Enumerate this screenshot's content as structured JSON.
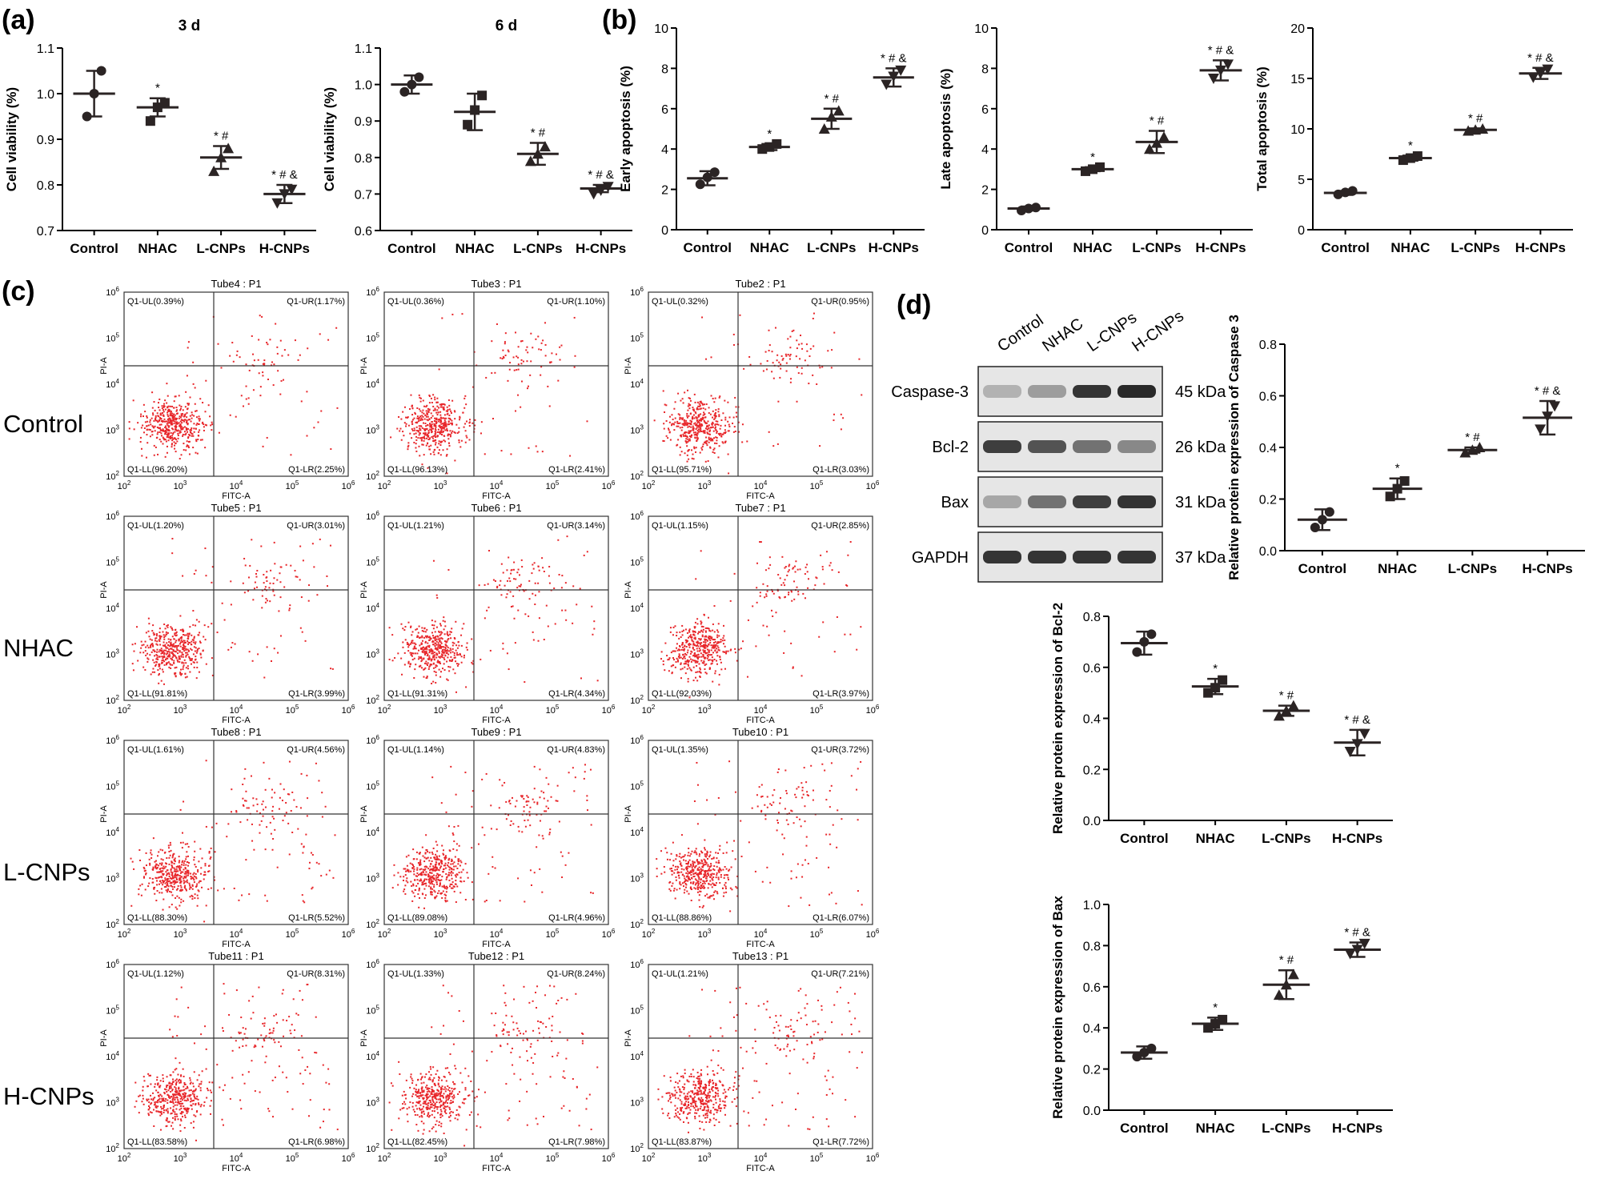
{
  "panel_labels": {
    "a": "(a)",
    "b": "(b)",
    "c": "(c)",
    "d": "(d)"
  },
  "significance_marks": {
    "star": "*",
    "hash": "#",
    "amp": "&"
  },
  "flow_axis": {
    "x_label": "FITC-A",
    "y_label": "PI-A",
    "tick_base": "10",
    "exponents": [
      "2",
      "3",
      "4",
      "5",
      "6"
    ]
  },
  "flow_rows": [
    "Control",
    "NHAC",
    "L-CNPs",
    "H-CNPs"
  ],
  "flow_plots": [
    [
      {
        "title": "Tube4 : P1",
        "UL": "Q1-UL(0.39%)",
        "UR": "Q1-UR(1.17%)",
        "LL": "Q1-LL(96.20%)",
        "LR": "Q1-LR(2.25%)"
      },
      {
        "title": "Tube3 : P1",
        "UL": "Q1-UL(0.36%)",
        "UR": "Q1-UR(1.10%)",
        "LL": "Q1-LL(96.13%)",
        "LR": "Q1-LR(2.41%)"
      },
      {
        "title": "Tube2 : P1",
        "UL": "Q1-UL(0.32%)",
        "UR": "Q1-UR(0.95%)",
        "LL": "Q1-LL(95.71%)",
        "LR": "Q1-LR(3.03%)"
      }
    ],
    [
      {
        "title": "Tube5 : P1",
        "UL": "Q1-UL(1.20%)",
        "UR": "Q1-UR(3.01%)",
        "LL": "Q1-LL(91.81%)",
        "LR": "Q1-LR(3.99%)"
      },
      {
        "title": "Tube6 : P1",
        "UL": "Q1-UL(1.21%)",
        "UR": "Q1-UR(3.14%)",
        "LL": "Q1-LL(91.31%)",
        "LR": "Q1-LR(4.34%)"
      },
      {
        "title": "Tube7 : P1",
        "UL": "Q1-UL(1.15%)",
        "UR": "Q1-UR(2.85%)",
        "LL": "Q1-LL(92.03%)",
        "LR": "Q1-LR(3.97%)"
      }
    ],
    [
      {
        "title": "Tube8 : P1",
        "UL": "Q1-UL(1.61%)",
        "UR": "Q1-UR(4.56%)",
        "LL": "Q1-LL(88.30%)",
        "LR": "Q1-LR(5.52%)"
      },
      {
        "title": "Tube9 : P1",
        "UL": "Q1-UL(1.14%)",
        "UR": "Q1-UR(4.83%)",
        "LL": "Q1-LL(89.08%)",
        "LR": "Q1-LR(4.96%)"
      },
      {
        "title": "Tube10 : P1",
        "UL": "Q1-UL(1.35%)",
        "UR": "Q1-UR(3.72%)",
        "LL": "Q1-LL(88.86%)",
        "LR": "Q1-LR(6.07%)"
      }
    ],
    [
      {
        "title": "Tube11 : P1",
        "UL": "Q1-UL(1.12%)",
        "UR": "Q1-UR(8.31%)",
        "LL": "Q1-LL(83.58%)",
        "LR": "Q1-LR(6.98%)"
      },
      {
        "title": "Tube12 : P1",
        "UL": "Q1-UL(1.33%)",
        "UR": "Q1-UR(8.24%)",
        "LL": "Q1-LL(82.45%)",
        "LR": "Q1-LR(7.98%)"
      },
      {
        "title": "Tube13 : P1",
        "UL": "Q1-UL(1.21%)",
        "UR": "Q1-UR(7.21%)",
        "LL": "Q1-LL(83.87%)",
        "LR": "Q1-LR(7.72%)"
      }
    ]
  ],
  "western_blot": {
    "lanes": [
      "Control",
      "NHAC",
      "L-CNPs",
      "H-CNPs"
    ],
    "rows": [
      {
        "protein": "Caspase-3",
        "size": "45 kDa",
        "intensity": [
          0.25,
          0.35,
          0.85,
          0.9
        ]
      },
      {
        "protein": "Bcl-2",
        "size": "26 kDa",
        "intensity": [
          0.8,
          0.7,
          0.55,
          0.45
        ]
      },
      {
        "protein": "Bax",
        "size": "31 kDa",
        "intensity": [
          0.3,
          0.55,
          0.8,
          0.85
        ]
      },
      {
        "protein": "GAPDH",
        "size": "37 kDa",
        "intensity": [
          0.85,
          0.85,
          0.85,
          0.85
        ]
      }
    ]
  },
  "chart_data": [
    {
      "type": "scatter",
      "title": "3 d",
      "ylabel": "Cell viability (%)",
      "categories": [
        "Control",
        "NHAC",
        "L-CNPs",
        "H-CNPs"
      ],
      "ylim": [
        0.7,
        1.1
      ],
      "yticks": [
        0.7,
        0.8,
        0.9,
        1.0,
        1.1
      ],
      "tick_decimals": 1,
      "points": [
        [
          0.95,
          1.0,
          1.05
        ],
        [
          0.94,
          0.97,
          0.98
        ],
        [
          0.83,
          0.86,
          0.88
        ],
        [
          0.76,
          0.78,
          0.79
        ]
      ],
      "mean": [
        1.0,
        0.97,
        0.86,
        0.78
      ],
      "sd": [
        0.05,
        0.02,
        0.025,
        0.02
      ],
      "marks": [
        "",
        "*",
        "*#",
        "*#&"
      ]
    },
    {
      "type": "scatter",
      "title": "6 d",
      "ylabel": "Cell viability (%)",
      "categories": [
        "Control",
        "NHAC",
        "L-CNPs",
        "H-CNPs"
      ],
      "ylim": [
        0.6,
        1.1
      ],
      "yticks": [
        0.6,
        0.7,
        0.8,
        0.9,
        1.0,
        1.1
      ],
      "tick_decimals": 1,
      "points": [
        [
          0.98,
          1.0,
          1.02
        ],
        [
          0.89,
          0.93,
          0.97
        ],
        [
          0.79,
          0.81,
          0.83
        ],
        [
          0.7,
          0.71,
          0.72
        ]
      ],
      "mean": [
        1.0,
        0.925,
        0.81,
        0.715
      ],
      "sd": [
        0.025,
        0.05,
        0.03,
        0.01
      ],
      "marks": [
        "",
        "",
        "*#",
        "*#&"
      ]
    },
    {
      "type": "scatter",
      "title": "",
      "ylabel": "Early apoptosis (%)",
      "categories": [
        "Control",
        "NHAC",
        "L-CNPs",
        "H-CNPs"
      ],
      "ylim": [
        0,
        10
      ],
      "yticks": [
        0,
        2,
        4,
        6,
        8,
        10
      ],
      "tick_decimals": 0,
      "points": [
        [
          2.25,
          2.6,
          2.85
        ],
        [
          4.0,
          4.1,
          4.25
        ],
        [
          5.0,
          5.6,
          5.9
        ],
        [
          7.2,
          7.6,
          7.9
        ]
      ],
      "mean": [
        2.55,
        4.1,
        5.5,
        7.55
      ],
      "sd": [
        0.35,
        0.15,
        0.5,
        0.45
      ],
      "marks": [
        "",
        "*",
        "*#",
        "*#&"
      ]
    },
    {
      "type": "scatter",
      "title": "",
      "ylabel": "Late apoptosis (%)",
      "categories": [
        "Control",
        "NHAC",
        "L-CNPs",
        "H-CNPs"
      ],
      "ylim": [
        0,
        10
      ],
      "yticks": [
        0,
        2,
        4,
        6,
        8,
        10
      ],
      "tick_decimals": 0,
      "points": [
        [
          0.95,
          1.05,
          1.1
        ],
        [
          2.9,
          3.0,
          3.1
        ],
        [
          4.0,
          4.3,
          4.6
        ],
        [
          7.5,
          7.9,
          8.2
        ]
      ],
      "mean": [
        1.05,
        3.0,
        4.35,
        7.9
      ],
      "sd": [
        0.1,
        0.1,
        0.55,
        0.5
      ],
      "marks": [
        "",
        "*",
        "*#",
        "*#&"
      ]
    },
    {
      "type": "scatter",
      "title": "",
      "ylabel": "Total apoptosis (%)",
      "categories": [
        "Control",
        "NHAC",
        "L-CNPs",
        "H-CNPs"
      ],
      "ylim": [
        0,
        20
      ],
      "yticks": [
        0,
        5,
        10,
        15,
        20
      ],
      "tick_decimals": 0,
      "points": [
        [
          3.5,
          3.7,
          3.85
        ],
        [
          6.9,
          7.1,
          7.3
        ],
        [
          9.8,
          9.9,
          10.0
        ],
        [
          15.1,
          15.5,
          15.9
        ]
      ],
      "mean": [
        3.65,
        7.1,
        9.9,
        15.5
      ],
      "sd": [
        0.2,
        0.25,
        0.15,
        0.55
      ],
      "marks": [
        "",
        "*",
        "*#",
        "*#&"
      ]
    },
    {
      "type": "scatter",
      "title": "",
      "ylabel": "Relative protein expression of Caspase 3",
      "categories": [
        "Control",
        "NHAC",
        "L-CNPs",
        "H-CNPs"
      ],
      "ylim": [
        0,
        0.8
      ],
      "yticks": [
        0,
        0.2,
        0.4,
        0.6,
        0.8
      ],
      "tick_decimals": 1,
      "points": [
        [
          0.09,
          0.12,
          0.15
        ],
        [
          0.21,
          0.24,
          0.27
        ],
        [
          0.38,
          0.39,
          0.4
        ],
        [
          0.47,
          0.52,
          0.56
        ]
      ],
      "mean": [
        0.12,
        0.24,
        0.39,
        0.515
      ],
      "sd": [
        0.04,
        0.04,
        0.01,
        0.065
      ],
      "marks": [
        "",
        "*",
        "*#",
        "*#&"
      ]
    },
    {
      "type": "scatter",
      "title": "",
      "ylabel": "Relative protein expression of Bcl-2",
      "categories": [
        "Control",
        "NHAC",
        "L-CNPs",
        "H-CNPs"
      ],
      "ylim": [
        0,
        0.8
      ],
      "yticks": [
        0,
        0.2,
        0.4,
        0.6,
        0.8
      ],
      "tick_decimals": 1,
      "points": [
        [
          0.66,
          0.7,
          0.73
        ],
        [
          0.5,
          0.52,
          0.55
        ],
        [
          0.41,
          0.43,
          0.45
        ],
        [
          0.27,
          0.3,
          0.34
        ]
      ],
      "mean": [
        0.695,
        0.525,
        0.43,
        0.305
      ],
      "sd": [
        0.045,
        0.03,
        0.02,
        0.05
      ],
      "marks": [
        "",
        "*",
        "*#",
        "*#&"
      ]
    },
    {
      "type": "scatter",
      "title": "",
      "ylabel": "Relative protein expression of Bax",
      "categories": [
        "Control",
        "NHAC",
        "L-CNPs",
        "H-CNPs"
      ],
      "ylim": [
        0,
        1.0
      ],
      "yticks": [
        0,
        0.2,
        0.4,
        0.6,
        0.8,
        1.0
      ],
      "tick_decimals": 1,
      "points": [
        [
          0.26,
          0.28,
          0.3
        ],
        [
          0.4,
          0.42,
          0.44
        ],
        [
          0.56,
          0.61,
          0.66
        ],
        [
          0.76,
          0.78,
          0.81
        ]
      ],
      "mean": [
        0.28,
        0.42,
        0.61,
        0.78
      ],
      "sd": [
        0.03,
        0.03,
        0.07,
        0.035
      ],
      "marks": [
        "",
        "*",
        "*#",
        "*#&"
      ]
    }
  ]
}
